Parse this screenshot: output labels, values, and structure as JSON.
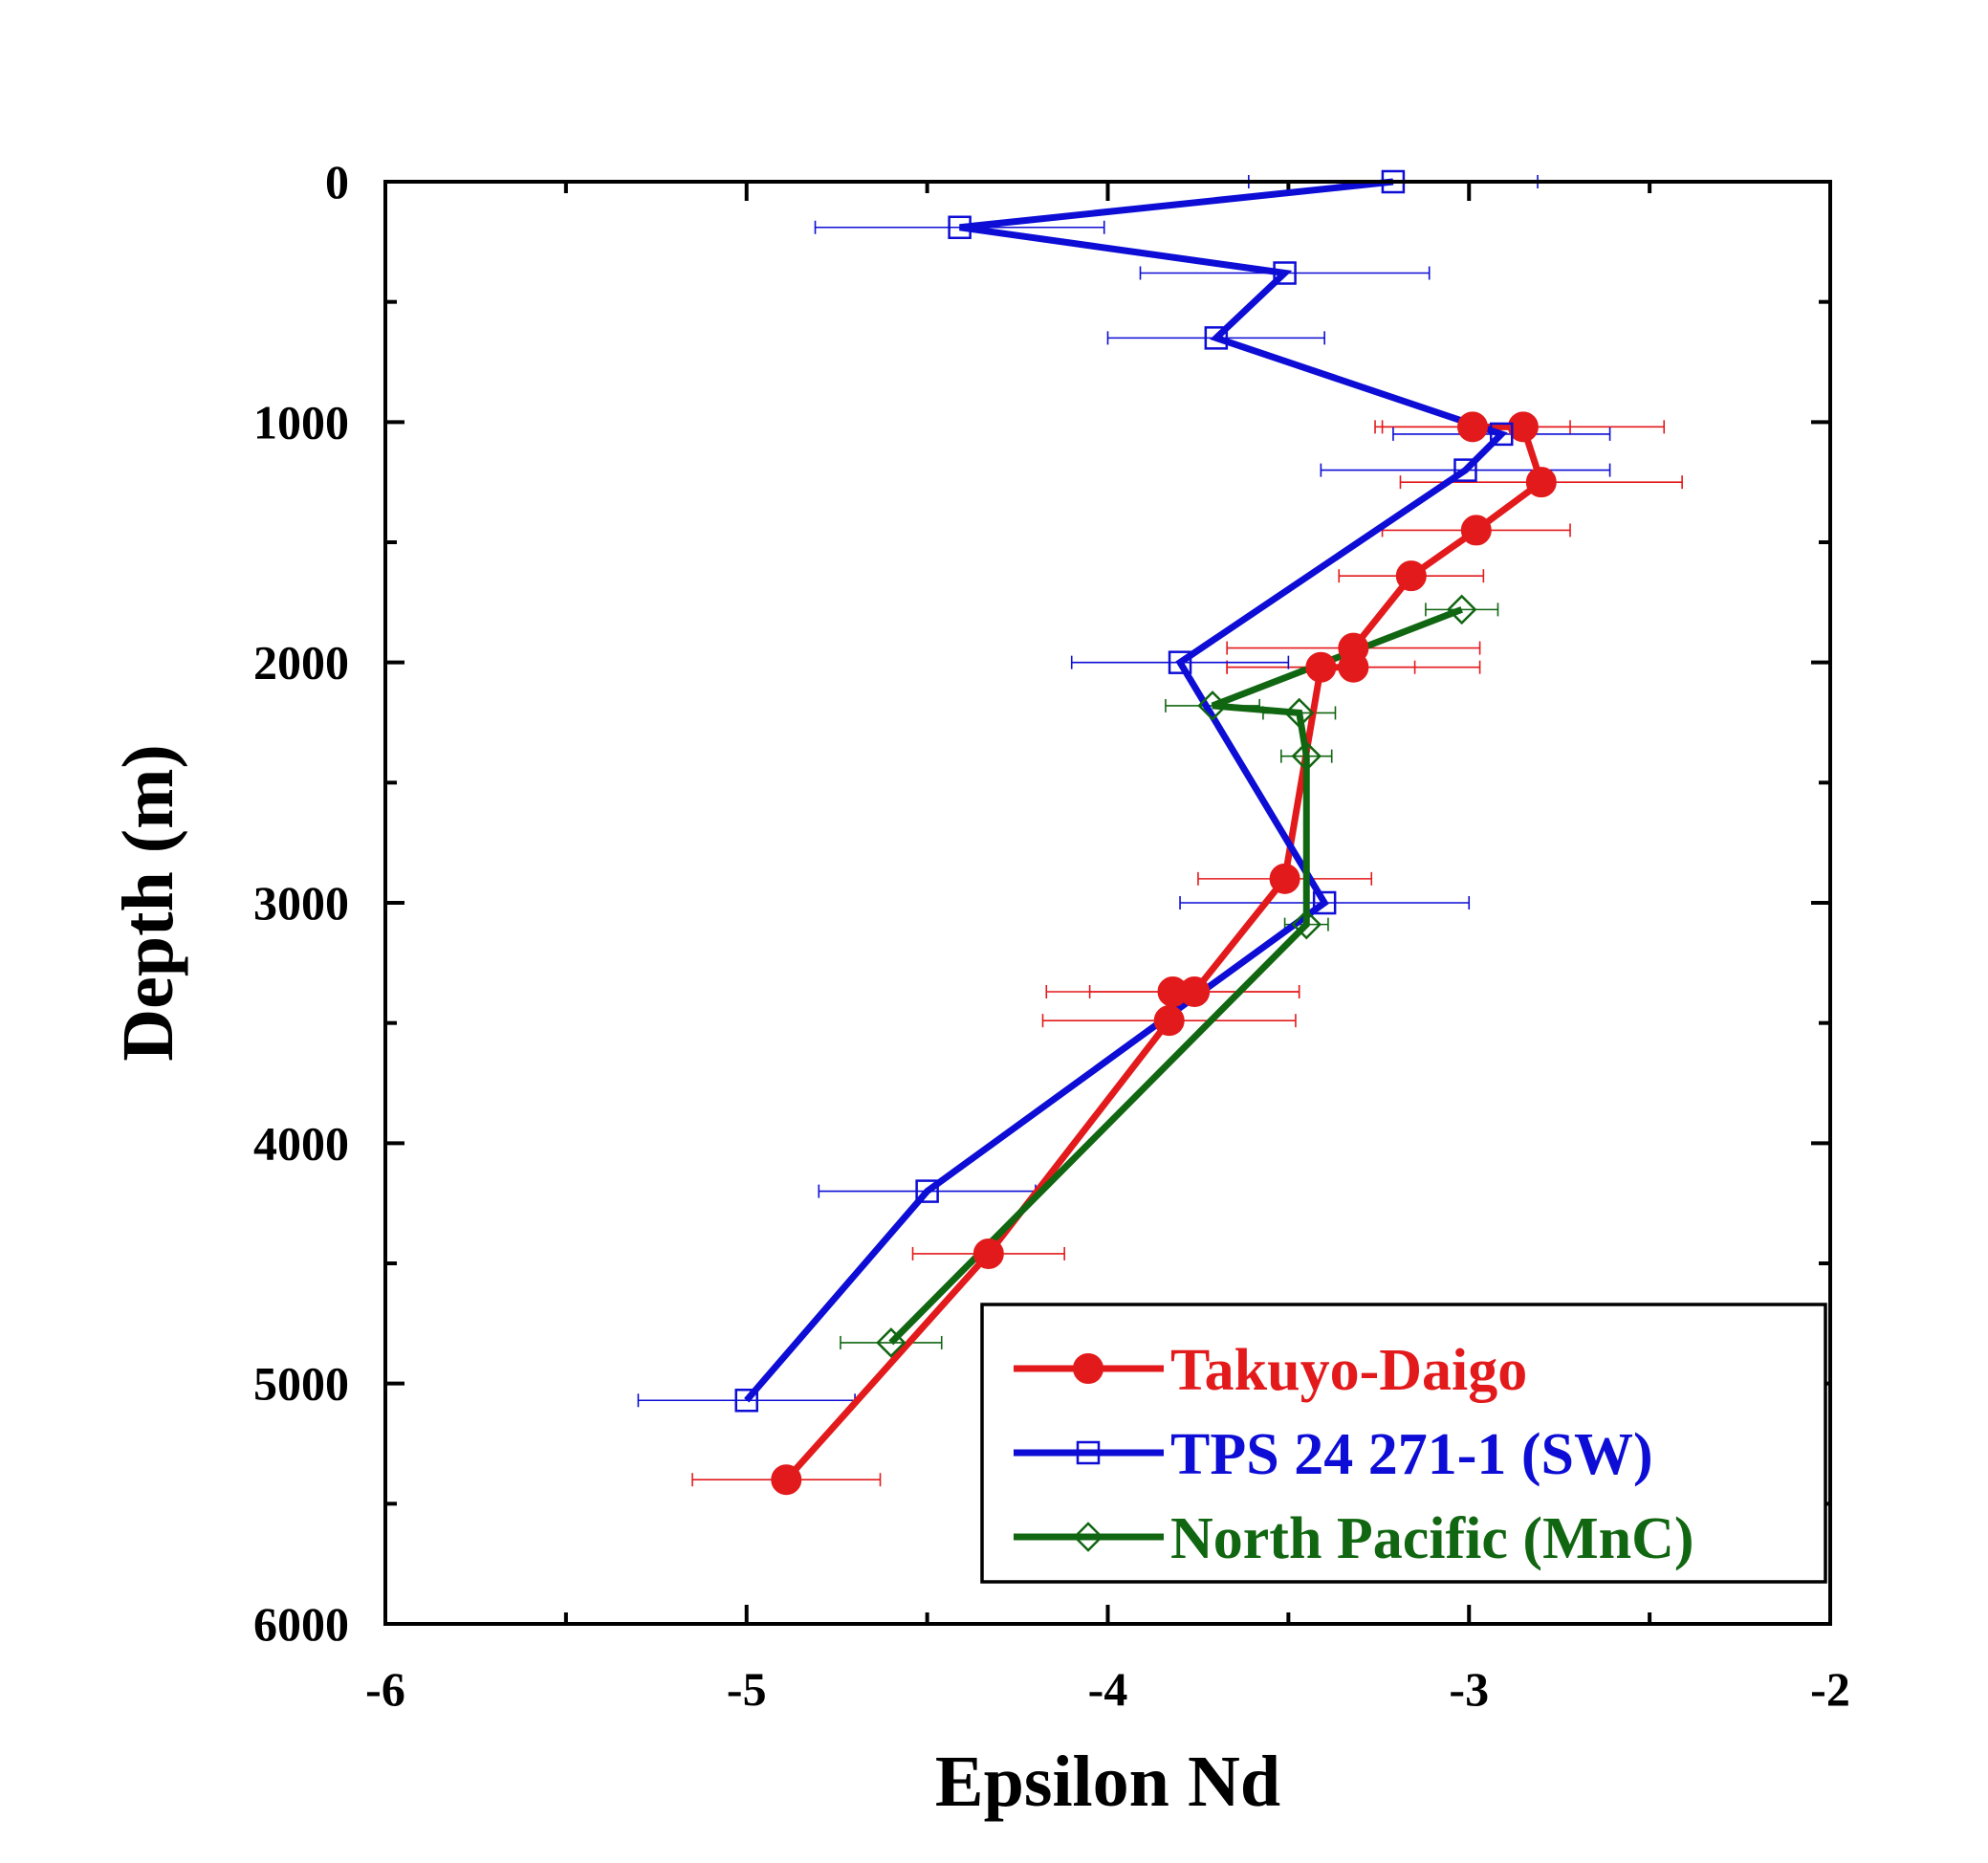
{
  "chart_data": {
    "type": "line",
    "xlabel": "Epsilon Nd",
    "ylabel": "Depth (m)",
    "xlim": [
      -6,
      -2
    ],
    "ylim": [
      0,
      6000
    ],
    "y_inverted": true,
    "x_ticks": [
      -6,
      -5,
      -4,
      -3,
      -2
    ],
    "y_ticks": [
      0,
      1000,
      2000,
      3000,
      4000,
      5000,
      6000
    ],
    "legend_position": "bottom-right",
    "series": [
      {
        "name": "Takuyo-Daigo",
        "color": "#e31a1c",
        "marker": "filled-circle",
        "points": [
          {
            "x": -2.99,
            "y": 1020,
            "xerr": 0.27
          },
          {
            "x": -2.85,
            "y": 1020,
            "xerr": 0.39
          },
          {
            "x": -2.8,
            "y": 1250,
            "xerr": 0.39
          },
          {
            "x": -2.98,
            "y": 1450,
            "xerr": 0.26
          },
          {
            "x": -3.16,
            "y": 1640,
            "xerr": 0.2
          },
          {
            "x": -3.32,
            "y": 1940,
            "xerr": 0.35
          },
          {
            "x": -3.32,
            "y": 2020,
            "xerr": 0.35
          },
          {
            "x": -3.41,
            "y": 2020,
            "xerr": 0.26
          },
          {
            "x": -3.51,
            "y": 2900,
            "xerr": 0.24
          },
          {
            "x": -3.76,
            "y": 3370,
            "xerr": 0.29
          },
          {
            "x": -3.82,
            "y": 3370,
            "xerr": 0.35
          },
          {
            "x": -3.83,
            "y": 3490,
            "xerr": 0.35
          },
          {
            "x": -4.33,
            "y": 4460,
            "xerr": 0.21
          },
          {
            "x": -4.89,
            "y": 5400,
            "xerr": 0.26
          }
        ]
      },
      {
        "name": "TPS 24 271-1 (SW)",
        "color": "#0d0dd6",
        "marker": "open-square",
        "points": [
          {
            "x": -3.21,
            "y": 0,
            "xerr": 0.4
          },
          {
            "x": -4.41,
            "y": 190,
            "xerr": 0.4
          },
          {
            "x": -3.51,
            "y": 380,
            "xerr": 0.4
          },
          {
            "x": -3.7,
            "y": 650,
            "xerr": 0.3
          },
          {
            "x": -2.91,
            "y": 1050,
            "xerr": 0.3
          },
          {
            "x": -3.01,
            "y": 1200,
            "xerr": 0.4
          },
          {
            "x": -3.8,
            "y": 2000,
            "xerr": 0.3
          },
          {
            "x": -3.4,
            "y": 3000,
            "xerr": 0.4
          },
          {
            "x": -4.5,
            "y": 4200,
            "xerr": 0.3
          },
          {
            "x": -5.0,
            "y": 5070,
            "xerr": 0.3
          }
        ]
      },
      {
        "name": "North Pacific (MnC)",
        "color": "#116611",
        "marker": "open-diamond",
        "points": [
          {
            "x": -3.02,
            "y": 1780,
            "xerr": 0.1
          },
          {
            "x": -3.71,
            "y": 2180,
            "xerr": 0.13
          },
          {
            "x": -3.47,
            "y": 2210,
            "xerr": 0.1
          },
          {
            "x": -3.45,
            "y": 2390,
            "xerr": 0.07
          },
          {
            "x": -3.45,
            "y": 3090,
            "xerr": 0.06
          },
          {
            "x": -4.6,
            "y": 4830,
            "xerr": 0.14
          }
        ]
      }
    ]
  }
}
